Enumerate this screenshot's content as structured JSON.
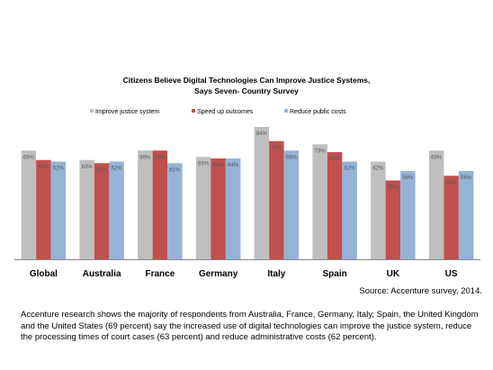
{
  "chart_data": {
    "type": "bar",
    "title_line1": "Citizens Believe Digital  Technologies Can Improve Justice Systems,",
    "title_line2": "Says Seven- Country Survey",
    "categories": [
      "Global",
      "Australia",
      "France",
      "Germany",
      "Italy",
      "Spain",
      "UK",
      "US"
    ],
    "series": [
      {
        "name": "Improve justice system",
        "color": "#bfbfbf",
        "values": [
          69,
          63,
          69,
          65,
          84,
          73,
          62,
          69
        ]
      },
      {
        "name": "Speed up outcomes",
        "color": "#c0504d",
        "values": [
          63,
          61,
          69,
          64,
          75,
          68,
          50,
          53
        ]
      },
      {
        "name": "Reduce public costs",
        "color": "#95b3d7",
        "values": [
          62,
          62,
          61,
          64,
          69,
          62,
          56,
          56
        ]
      }
    ],
    "value_suffix": "%",
    "ylim": [
      0,
      100
    ],
    "grid": false,
    "legend_position": "top"
  },
  "source": "Source: Accenture survey, 2014.",
  "caption": "Accenture research shows the majority of respondents from Australia, France, Germany, Italy, Spain, the United Kingdom and the United States (69 percent) say the increased use of digital technologies can improve the justice system, reduce the processing times of court cases (63 percent) and reduce administrative costs (62 percent)."
}
